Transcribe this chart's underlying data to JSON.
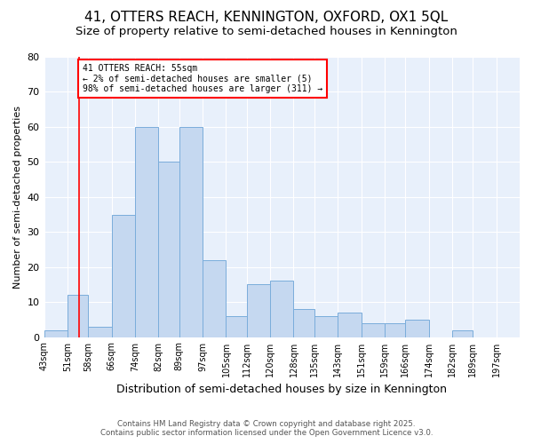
{
  "title": "41, OTTERS REACH, KENNINGTON, OXFORD, OX1 5QL",
  "subtitle": "Size of property relative to semi-detached houses in Kennington",
  "xlabel": "Distribution of semi-detached houses by size in Kennington",
  "ylabel": "Number of semi-detached properties",
  "bins": [
    43,
    51,
    58,
    66,
    74,
    82,
    89,
    97,
    105,
    112,
    120,
    128,
    135,
    143,
    151,
    159,
    166,
    174,
    182,
    189,
    197
  ],
  "counts": [
    2,
    12,
    3,
    35,
    60,
    50,
    60,
    22,
    6,
    15,
    16,
    8,
    6,
    7,
    4,
    4,
    5,
    0,
    2,
    0,
    0
  ],
  "bar_color": "#c5d8f0",
  "bar_edge_color": "#7aaddb",
  "redline_x": 55,
  "annotation_line1": "41 OTTERS REACH: 55sqm",
  "annotation_line2": "← 2% of semi-detached houses are smaller (5)",
  "annotation_line3": "98% of semi-detached houses are larger (311) →",
  "ylim": [
    0,
    80
  ],
  "yticks": [
    0,
    10,
    20,
    30,
    40,
    50,
    60,
    70,
    80
  ],
  "footer_line1": "Contains HM Land Registry data © Crown copyright and database right 2025.",
  "footer_line2": "Contains public sector information licensed under the Open Government Licence v3.0.",
  "bg_color": "#e8f0fb",
  "title_fontsize": 11,
  "subtitle_fontsize": 9.5,
  "annotation_box_color": "white",
  "annotation_box_edge": "red"
}
